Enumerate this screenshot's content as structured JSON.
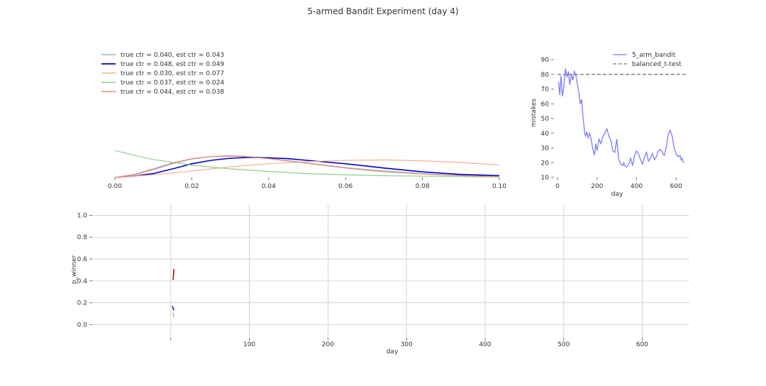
{
  "title": "5-armed Bandit Experiment (day 4)",
  "chart_data": [
    {
      "type": "line",
      "name": "posterior-densities",
      "xlim": [
        0,
        0.1
      ],
      "ylim": [
        0,
        30
      ],
      "xticks": [
        "0.00",
        "0.02",
        "0.04",
        "0.06",
        "0.08",
        "0.10"
      ],
      "xtick_values": [
        0,
        0.02,
        0.04,
        0.06,
        0.08,
        0.1
      ],
      "grid": false,
      "legend_position": "top-left",
      "series": [
        {
          "name": "true ctr = 0.040, est ctr = 0.043",
          "color": "#8fb7c9",
          "width": 1.2,
          "x": [
            0,
            0.005,
            0.01,
            0.015,
            0.02,
            0.025,
            0.03,
            0.035,
            0.04,
            0.05,
            0.06,
            0.07,
            0.08,
            0.09,
            0.1
          ],
          "y": [
            0,
            0.6,
            1.8,
            3.2,
            4.3,
            4.9,
            5.1,
            4.9,
            4.5,
            3.4,
            2.3,
            1.5,
            0.9,
            0.5,
            0.3
          ]
        },
        {
          "name": "true ctr = 0.048, est ctr = 0.049",
          "color": "#0000cc",
          "width": 1.6,
          "x": [
            0,
            0.005,
            0.01,
            0.015,
            0.02,
            0.025,
            0.03,
            0.035,
            0.04,
            0.045,
            0.05,
            0.06,
            0.07,
            0.08,
            0.09,
            0.1
          ],
          "y": [
            0,
            0.3,
            0.9,
            2.0,
            3.2,
            4.0,
            4.5,
            4.7,
            4.6,
            4.4,
            4.0,
            3.2,
            2.2,
            1.3,
            0.7,
            0.4
          ]
        },
        {
          "name": "true ctr = 0.030, est ctr = 0.077",
          "color": "#f4b48a",
          "width": 1.2,
          "x": [
            0,
            0.01,
            0.02,
            0.03,
            0.04,
            0.05,
            0.06,
            0.07,
            0.08,
            0.09,
            0.1
          ],
          "y": [
            0,
            0.6,
            1.5,
            2.5,
            3.2,
            3.7,
            4.0,
            4.1,
            3.9,
            3.5,
            2.9
          ]
        },
        {
          "name": "true ctr = 0.037, est ctr = 0.024",
          "color": "#8ed08e",
          "width": 1.2,
          "x": [
            0,
            0.005,
            0.01,
            0.02,
            0.03,
            0.04,
            0.05,
            0.06,
            0.07,
            0.08,
            0.09,
            0.1
          ],
          "y": [
            6.3,
            5.2,
            4.2,
            2.9,
            2.0,
            1.4,
            0.9,
            0.6,
            0.4,
            0.3,
            0.2,
            0.1
          ]
        },
        {
          "name": "true ctr = 0.044, est ctr = 0.038",
          "color": "#e88c78",
          "width": 1.2,
          "x": [
            0,
            0.005,
            0.01,
            0.015,
            0.02,
            0.025,
            0.03,
            0.035,
            0.04,
            0.05,
            0.06,
            0.07,
            0.08,
            0.09,
            0.1
          ],
          "y": [
            0,
            0.7,
            2.0,
            3.4,
            4.4,
            4.9,
            5.0,
            4.8,
            4.4,
            3.3,
            2.2,
            1.3,
            0.8,
            0.4,
            0.2
          ]
        }
      ]
    },
    {
      "type": "line",
      "name": "mistakes",
      "xlabel": "day",
      "ylabel": "mistakes",
      "xlim": [
        0,
        660
      ],
      "ylim": [
        10,
        90
      ],
      "xticks": [
        "0",
        "200",
        "400",
        "600"
      ],
      "xtick_values": [
        0,
        200,
        400,
        600
      ],
      "yticks": [
        "10",
        "20",
        "30",
        "40",
        "50",
        "60",
        "70",
        "80",
        "90"
      ],
      "ytick_values": [
        10,
        20,
        30,
        40,
        50,
        60,
        70,
        80,
        90
      ],
      "grid": false,
      "legend_position": "top-right",
      "series": [
        {
          "name": "5_arm_bandit",
          "color": "#7b7bff",
          "dashed": false,
          "x": [
            5,
            12,
            18,
            25,
            32,
            40,
            48,
            55,
            62,
            70,
            78,
            85,
            92,
            100,
            108,
            115,
            122,
            130,
            138,
            142,
            148,
            155,
            162,
            170,
            178,
            186,
            194,
            200,
            210,
            220,
            230,
            240,
            250,
            260,
            270,
            280,
            290,
            300,
            310,
            320,
            330,
            335,
            340,
            350,
            360,
            370,
            380,
            390,
            400,
            410,
            420,
            430,
            440,
            450,
            460,
            470,
            480,
            490,
            500,
            510,
            520,
            530,
            540,
            550,
            560,
            570,
            580,
            590,
            600,
            610,
            620,
            625,
            630,
            635,
            640
          ],
          "y": [
            75,
            66,
            79,
            65,
            72,
            84,
            78,
            82,
            73,
            80,
            76,
            82,
            80,
            74,
            68,
            60,
            63,
            50,
            40,
            38,
            41,
            37,
            40,
            36,
            30,
            25,
            33,
            28,
            36,
            33,
            38,
            40,
            43,
            38,
            35,
            28,
            27,
            36,
            22,
            19,
            18,
            20,
            18,
            17,
            19,
            23,
            18,
            25,
            28,
            26,
            22,
            19,
            24,
            27,
            21,
            23,
            26,
            22,
            24,
            28,
            29,
            27,
            25,
            30,
            39,
            42,
            38,
            30,
            26,
            24,
            25,
            22,
            23,
            21,
            20
          ]
        },
        {
          "name": "balanced_t-test",
          "color": "#777777",
          "dashed": true,
          "x": [
            0,
            660
          ],
          "y": [
            80,
            80
          ]
        }
      ]
    },
    {
      "type": "line",
      "name": "p-winner",
      "xlabel": "day",
      "ylabel": "p_winner",
      "xlim": [
        -100,
        660
      ],
      "ylim": [
        -0.12,
        1.1
      ],
      "xticks": [
        "100",
        "200",
        "300",
        "400",
        "500",
        "600"
      ],
      "xtick_values": [
        100,
        200,
        300,
        400,
        500,
        600
      ],
      "yticks": [
        "0.0",
        "0.2",
        "0.4",
        "0.6",
        "0.8",
        "1.0"
      ],
      "ytick_values": [
        0,
        0.2,
        0.4,
        0.6,
        0.8,
        1.0
      ],
      "grid": true,
      "series": [
        {
          "color": "#dd0000",
          "x": [
            3,
            4
          ],
          "y": [
            0.41,
            0.51
          ]
        },
        {
          "color": "#2222cc",
          "x": [
            2,
            4
          ],
          "y": [
            0.17,
            0.13
          ]
        },
        {
          "color": "#99cc99",
          "x": [
            3,
            4
          ],
          "y": [
            0.11,
            0.07
          ]
        }
      ]
    }
  ]
}
